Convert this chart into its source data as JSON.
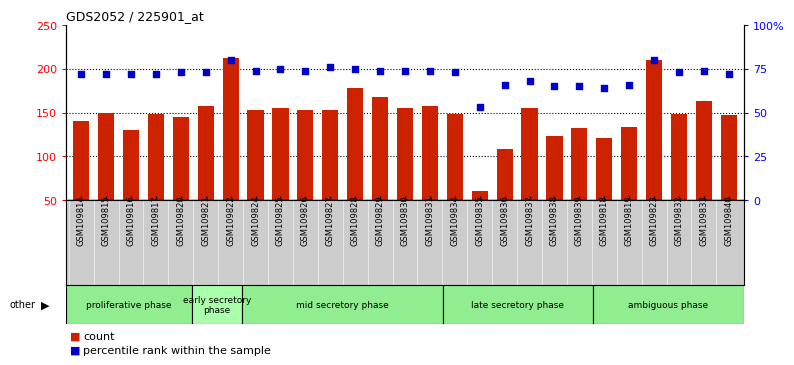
{
  "title": "GDS2052 / 225901_at",
  "samples": [
    "GSM109814",
    "GSM109815",
    "GSM109816",
    "GSM109817",
    "GSM109820",
    "GSM109821",
    "GSM109822",
    "GSM109824",
    "GSM109825",
    "GSM109826",
    "GSM109827",
    "GSM109828",
    "GSM109829",
    "GSM109830",
    "GSM109831",
    "GSM109834",
    "GSM109835",
    "GSM109836",
    "GSM109837",
    "GSM109838",
    "GSM109839",
    "GSM109818",
    "GSM109819",
    "GSM109823",
    "GSM109832",
    "GSM109833",
    "GSM109840"
  ],
  "counts": [
    140,
    150,
    130,
    148,
    145,
    158,
    212,
    153,
    155,
    153,
    153,
    178,
    168,
    155,
    158,
    148,
    60,
    108,
    155,
    123,
    133,
    121,
    134,
    210,
    148,
    163,
    147
  ],
  "percentiles": [
    72,
    72,
    72,
    72,
    73,
    73,
    80,
    74,
    75,
    74,
    76,
    75,
    74,
    74,
    74,
    73,
    53,
    66,
    68,
    65,
    65,
    64,
    66,
    80,
    73,
    74,
    72
  ],
  "phases": [
    {
      "label": "proliferative phase",
      "start": 0,
      "end": 5,
      "color": "#90EE90"
    },
    {
      "label": "early secretory\nphase",
      "start": 5,
      "end": 7,
      "color": "#aaffaa"
    },
    {
      "label": "mid secretory phase",
      "start": 7,
      "end": 15,
      "color": "#90EE90"
    },
    {
      "label": "late secretory phase",
      "start": 15,
      "end": 21,
      "color": "#90EE90"
    },
    {
      "label": "ambiguous phase",
      "start": 21,
      "end": 27,
      "color": "#90EE90"
    }
  ],
  "ylim_left": [
    50,
    250
  ],
  "ylim_right": [
    0,
    100
  ],
  "yticks_left": [
    50,
    100,
    150,
    200,
    250
  ],
  "yticks_right": [
    0,
    25,
    50,
    75,
    100
  ],
  "ytick_labels_right": [
    "0",
    "25",
    "50",
    "75",
    "100%"
  ],
  "bar_color": "#cc2200",
  "dot_color": "#0000cc",
  "tick_bg_color": "#cccccc",
  "plot_bg": "#ffffff",
  "gridline_color": "black",
  "gridline_vals": [
    100,
    150,
    200
  ]
}
